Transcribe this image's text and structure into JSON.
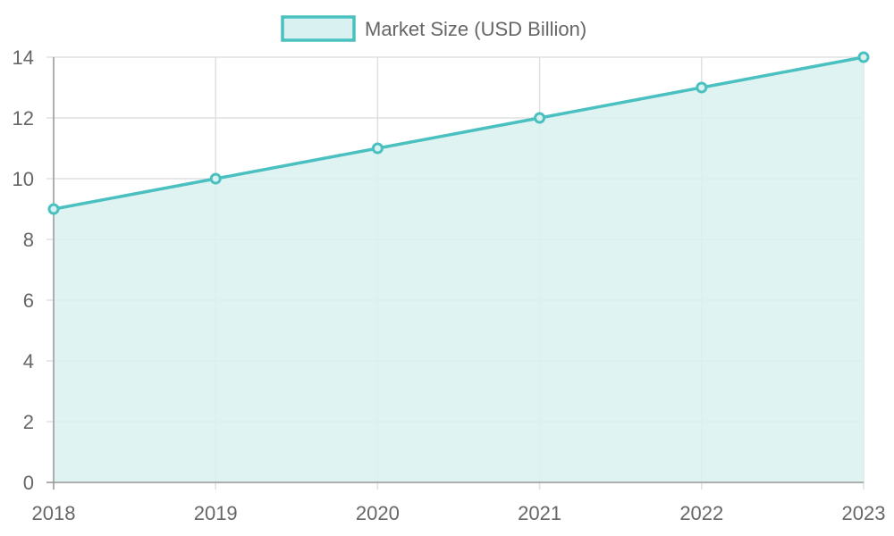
{
  "chart_data": {
    "type": "area",
    "categories": [
      "2018",
      "2019",
      "2020",
      "2021",
      "2022",
      "2023"
    ],
    "series": [
      {
        "name": "Market Size (USD Billion)",
        "values": [
          9,
          10,
          11,
          12,
          13,
          14
        ]
      }
    ],
    "ylim": [
      0,
      14
    ],
    "yticks": [
      0,
      2,
      4,
      6,
      8,
      10,
      12,
      14
    ],
    "grid": true,
    "legend_position": "top-center",
    "colors": {
      "line": "#4BC0C0",
      "fill": "#DAF1F1",
      "grid": "#E0E0E0",
      "axis": "#999999",
      "text": "#666666"
    }
  }
}
